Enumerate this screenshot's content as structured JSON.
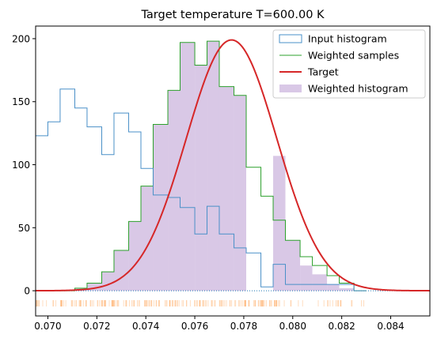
{
  "chart_data": {
    "type": "histogram",
    "title": "Target temperature T=600.00 K",
    "xlabel": "",
    "ylabel": "",
    "xlim": [
      0.0695,
      0.0856
    ],
    "ylim": [
      -20,
      210
    ],
    "xticks": [
      0.07,
      0.072,
      0.074,
      0.076,
      0.078,
      0.08,
      0.082,
      0.084
    ],
    "xtick_labels": [
      "0.070",
      "0.072",
      "0.074",
      "0.076",
      "0.078",
      "0.080",
      "0.082",
      "0.084"
    ],
    "yticks": [
      0,
      50,
      100,
      150,
      200
    ],
    "ytick_labels": [
      "0",
      "50",
      "100",
      "150",
      "200"
    ],
    "grid": false,
    "legend_position": "top-right",
    "colors": {
      "input": "#4a90c8",
      "weighted_samples": "#2ca02c",
      "target": "#d62728",
      "weighted_hist": "#d9c8e6",
      "rug": "#ff9f4a",
      "zero_line": "#1f77b4"
    },
    "bin_edges": [
      0.0695,
      0.07,
      0.0705,
      0.0711,
      0.0716,
      0.0722,
      0.0727,
      0.0733,
      0.0738,
      0.0743,
      0.0749,
      0.0754,
      0.076,
      0.0765,
      0.077,
      0.0776,
      0.0781,
      0.0787,
      0.0792,
      0.0797,
      0.0803,
      0.0808,
      0.0814,
      0.0819,
      0.0825,
      0.083,
      0.0856
    ],
    "series": [
      {
        "name": "Input histogram",
        "kind": "step-outline",
        "values": [
          123,
          134,
          160,
          145,
          130,
          108,
          141,
          126,
          97,
          76,
          74,
          66,
          45,
          67,
          45,
          34,
          30,
          3,
          21,
          5,
          5,
          5,
          5,
          5,
          0
        ]
      },
      {
        "name": "Weighted samples",
        "kind": "step-outline",
        "values": [
          0,
          0,
          0,
          2,
          6,
          15,
          32,
          55,
          83,
          132,
          159,
          197,
          179,
          198,
          162,
          155,
          98,
          75,
          56,
          40,
          27,
          20,
          12,
          6,
          0
        ]
      },
      {
        "name": "Target",
        "kind": "curve",
        "function": "gaussian",
        "peak_x": 0.0775,
        "peak_y": 199,
        "sigma": 0.00185
      },
      {
        "name": "Weighted histogram",
        "kind": "filled-bars",
        "values": [
          0,
          0,
          0,
          2,
          6,
          15,
          32,
          55,
          83,
          132,
          159,
          197,
          179,
          198,
          162,
          155,
          0,
          0,
          107,
          40,
          20,
          13,
          5,
          2,
          0
        ]
      }
    ],
    "rug_samples": {
      "y": -10,
      "x_range": [
        0.0695,
        0.083
      ]
    }
  }
}
